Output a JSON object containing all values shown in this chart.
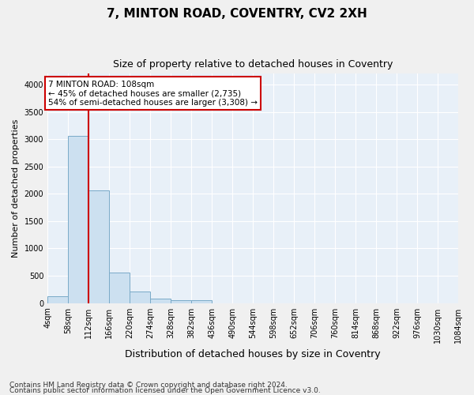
{
  "title1": "7, MINTON ROAD, COVENTRY, CV2 2XH",
  "title2": "Size of property relative to detached houses in Coventry",
  "xlabel": "Distribution of detached houses by size in Coventry",
  "ylabel": "Number of detached properties",
  "bin_labels": [
    "4sqm",
    "58sqm",
    "112sqm",
    "166sqm",
    "220sqm",
    "274sqm",
    "328sqm",
    "382sqm",
    "436sqm",
    "490sqm",
    "544sqm",
    "598sqm",
    "652sqm",
    "706sqm",
    "760sqm",
    "814sqm",
    "868sqm",
    "922sqm",
    "976sqm",
    "1030sqm",
    "1084sqm"
  ],
  "bin_edges": [
    4,
    58,
    112,
    166,
    220,
    274,
    328,
    382,
    436,
    490,
    544,
    598,
    652,
    706,
    760,
    814,
    868,
    922,
    976,
    1030,
    1084
  ],
  "bar_heights": [
    130,
    3060,
    2060,
    560,
    210,
    75,
    50,
    50,
    0,
    0,
    0,
    0,
    0,
    0,
    0,
    0,
    0,
    0,
    0,
    0
  ],
  "bar_color": "#cce0f0",
  "bar_edge_color": "#7aaac8",
  "property_line_x": 112,
  "property_line_color": "#cc0000",
  "annotation_text": "7 MINTON ROAD: 108sqm\n← 45% of detached houses are smaller (2,735)\n54% of semi-detached houses are larger (3,308) →",
  "annotation_box_color": "#ffffff",
  "annotation_box_edge_color": "#cc0000",
  "ylim": [
    0,
    4200
  ],
  "yticks": [
    0,
    500,
    1000,
    1500,
    2000,
    2500,
    3000,
    3500,
    4000
  ],
  "bg_color": "#f0f0f0",
  "plot_bg_color": "#e8f0f8",
  "footer1": "Contains HM Land Registry data © Crown copyright and database right 2024.",
  "footer2": "Contains public sector information licensed under the Open Government Licence v3.0.",
  "title1_fontsize": 11,
  "title2_fontsize": 9,
  "annot_fontsize": 7.5,
  "axis_fontsize": 7,
  "ylabel_fontsize": 8,
  "xlabel_fontsize": 9,
  "footer_fontsize": 6.5
}
